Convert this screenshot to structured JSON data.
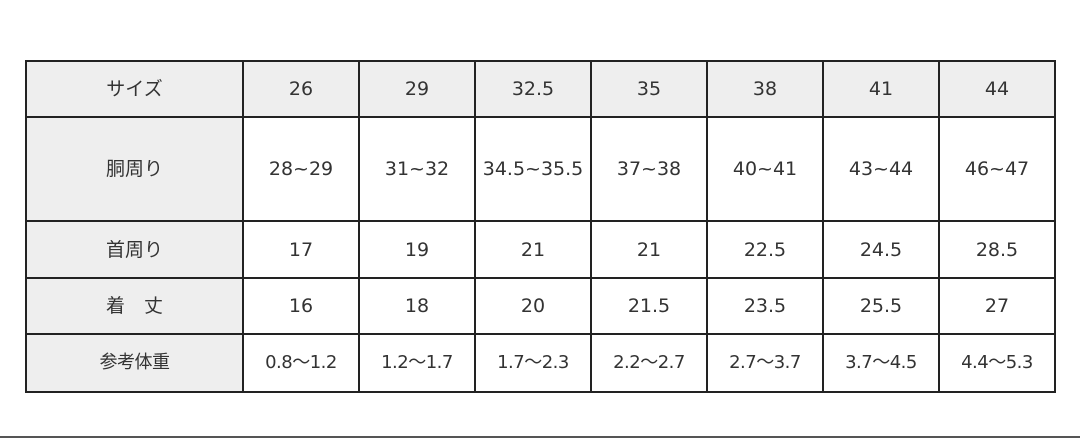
{
  "table": {
    "header": {
      "label": "サイズ",
      "sizes": [
        "26",
        "29",
        "32.5",
        "35",
        "38",
        "41",
        "44"
      ]
    },
    "rows": [
      {
        "label": "胴周り",
        "values": [
          "28~29",
          "31~32",
          "34.5~35.5",
          "37~38",
          "40~41",
          "43~44",
          "46~47"
        ]
      },
      {
        "label": "首周り",
        "values": [
          "17",
          "19",
          "21",
          "21",
          "22.5",
          "24.5",
          "28.5"
        ]
      },
      {
        "label": "着　丈",
        "values": [
          "16",
          "18",
          "20",
          "21.5",
          "23.5",
          "25.5",
          "27"
        ]
      },
      {
        "label": "参考体重",
        "values": [
          "0.8〜1.2",
          "1.2〜1.7",
          "1.7〜2.3",
          "2.2〜2.7",
          "2.7〜3.7",
          "3.7〜4.5",
          "4.4〜5.3"
        ]
      }
    ]
  },
  "colors": {
    "header_bg": "#eeeeee",
    "border": "#222222"
  }
}
